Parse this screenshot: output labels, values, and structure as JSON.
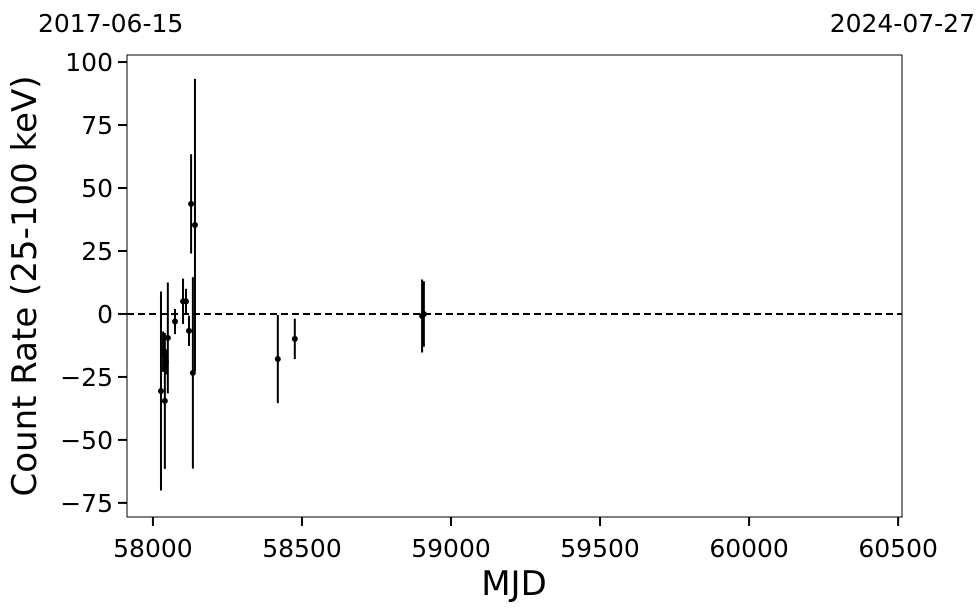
{
  "chart_data": {
    "type": "scatter",
    "xlabel": "MJD",
    "ylabel": "Count Rate (25-100 keV)",
    "start_label": "2017-06-15",
    "end_label": "2024-07-27",
    "x": [
      58027,
      58034,
      58040,
      58044,
      58050,
      58074,
      58101,
      58111,
      58121,
      58128,
      58134,
      58141,
      58419,
      58476,
      58903,
      58909
    ],
    "values": [
      -30.6,
      -15,
      -34.5,
      -19,
      -9.5,
      -3,
      5,
      5,
      -6.7,
      43.7,
      -23.4,
      35.3,
      -17.9,
      -9.9,
      -0.8,
      0
    ],
    "errors": [
      39.5,
      8,
      27,
      5,
      22,
      5,
      9,
      5,
      6,
      19.7,
      38,
      58,
      17.5,
      8,
      14.5,
      13
    ],
    "color": "#000000",
    "hline": 0,
    "xlim": [
      57913,
      60513
    ],
    "ylim": [
      -80.6,
      102.8
    ],
    "xticks": [
      58000,
      58500,
      59000,
      59500,
      60000,
      60500
    ],
    "yticks": [
      {
        "value": -75,
        "label": "−75"
      },
      {
        "value": -50,
        "label": "−50"
      },
      {
        "value": -25,
        "label": "−25"
      },
      0,
      25,
      50,
      75,
      100
    ]
  }
}
